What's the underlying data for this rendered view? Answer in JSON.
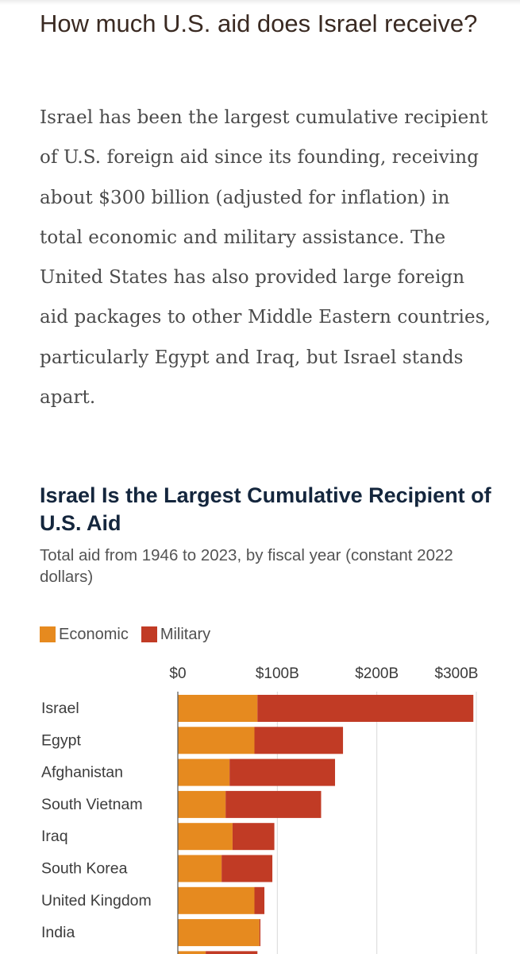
{
  "article": {
    "heading": "How much U.S. aid does Israel receive?",
    "paragraph": "Israel has been the largest cumulative recipient of U.S. foreign aid since its founding, receiving about $300 billion (adjusted for inflation) in total economic and military assistance. The United States has also provided large foreign aid packages to other Middle Eastern countries, particularly Egypt and Iraq, but Israel stands apart."
  },
  "colors": {
    "economic": "#e68a1f",
    "military": "#c13b25",
    "gridline": "#d9d9d9",
    "axis": "#555555"
  },
  "chart_data": {
    "type": "bar",
    "orientation": "horizontal",
    "stacked": true,
    "title": "Israel Is the Largest Cumulative Recipient of U.S. Aid",
    "subtitle": "Total aid from 1946 to 2023, by fiscal year (constant 2022 dollars)",
    "legend": [
      "Economic",
      "Military"
    ],
    "legend_position": "top-left",
    "xlim": [
      0,
      300
    ],
    "xticks": [
      0,
      100,
      200,
      300
    ],
    "xtick_labels": [
      "$0",
      "$100B",
      "$200B",
      "$300B"
    ],
    "categories": [
      "Israel",
      "Egypt",
      "Afghanistan",
      "South Vietnam",
      "Iraq",
      "South Korea",
      "United Kingdom",
      "India",
      ""
    ],
    "series": [
      {
        "name": "Economic",
        "values": [
          80,
          77,
          52,
          48,
          55,
          44,
          77,
          82,
          28
        ]
      },
      {
        "name": "Military",
        "values": [
          217,
          89,
          106,
          96,
          42,
          51,
          10,
          1,
          52
        ]
      }
    ]
  }
}
